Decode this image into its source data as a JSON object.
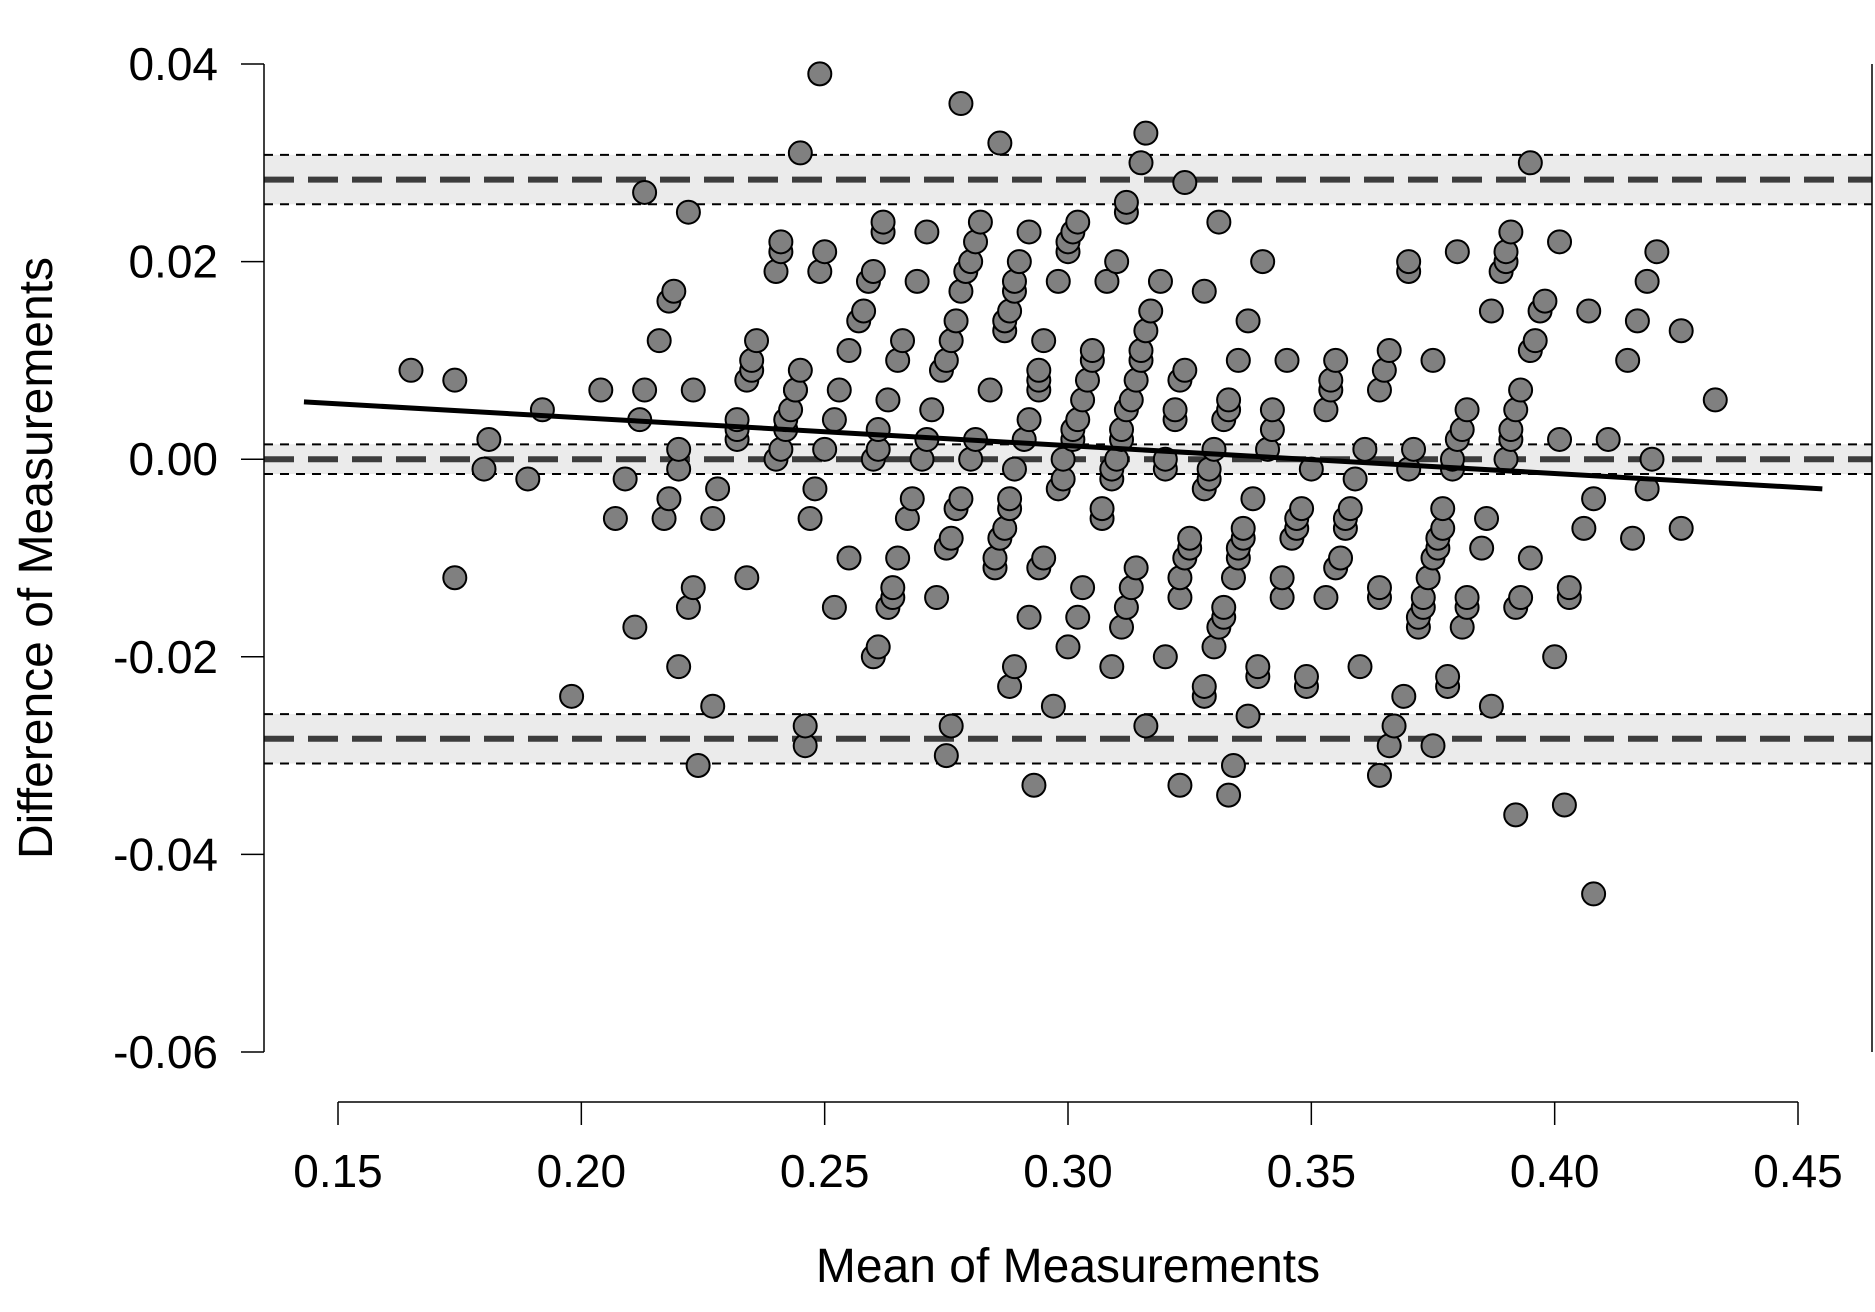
{
  "chart_data": {
    "type": "scatter",
    "title": "",
    "xlabel": "Mean of Measurements",
    "ylabel": "Difference of Measurements",
    "xlim": [
      0.15,
      0.45
    ],
    "ylim": [
      -0.06,
      0.04
    ],
    "x_ticks": [
      "0.15",
      "0.20",
      "0.25",
      "0.30",
      "0.35",
      "0.40",
      "0.45"
    ],
    "y_ticks": [
      "-0.06",
      "-0.04",
      "-0.02",
      "0.00",
      "0.02",
      "0.04"
    ],
    "grid": false,
    "legend": "none",
    "limits_of_agreement": [
      {
        "name": "upper",
        "value": 0.0283,
        "ci": [
          0.0258,
          0.0308
        ]
      },
      {
        "name": "mean",
        "value": 0.0,
        "ci": [
          -0.0015,
          0.0015
        ]
      },
      {
        "name": "lower",
        "value": -0.0283,
        "ci": [
          -0.0308,
          -0.0258
        ]
      }
    ],
    "regression_line": {
      "x": [
        0.143,
        0.455
      ],
      "y": [
        0.0058,
        -0.003
      ]
    },
    "colors": {
      "points": "#808080",
      "point_edge": "#000000",
      "band": "#ebebeb",
      "line": "#000000",
      "dashed": "#3c3c3c"
    },
    "points": [
      [
        0.165,
        0.009
      ],
      [
        0.174,
        0.008
      ],
      [
        0.174,
        -0.012
      ],
      [
        0.18,
        -0.001
      ],
      [
        0.181,
        0.002
      ],
      [
        0.189,
        -0.002
      ],
      [
        0.192,
        0.005
      ],
      [
        0.198,
        -0.024
      ],
      [
        0.204,
        0.007
      ],
      [
        0.207,
        -0.006
      ],
      [
        0.209,
        -0.002
      ],
      [
        0.211,
        -0.017
      ],
      [
        0.212,
        0.004
      ],
      [
        0.213,
        0.007
      ],
      [
        0.213,
        0.027
      ],
      [
        0.216,
        0.012
      ],
      [
        0.217,
        -0.006
      ],
      [
        0.218,
        -0.004
      ],
      [
        0.218,
        0.016
      ],
      [
        0.219,
        0.017
      ],
      [
        0.22,
        -0.021
      ],
      [
        0.22,
        -0.001
      ],
      [
        0.22,
        0.001
      ],
      [
        0.222,
        -0.015
      ],
      [
        0.222,
        0.025
      ],
      [
        0.223,
        -0.013
      ],
      [
        0.223,
        0.007
      ],
      [
        0.224,
        -0.031
      ],
      [
        0.227,
        -0.006
      ],
      [
        0.227,
        -0.025
      ],
      [
        0.228,
        -0.003
      ],
      [
        0.232,
        0.002
      ],
      [
        0.232,
        0.003
      ],
      [
        0.232,
        0.004
      ],
      [
        0.234,
        -0.012
      ],
      [
        0.234,
        0.008
      ],
      [
        0.235,
        0.009
      ],
      [
        0.235,
        0.01
      ],
      [
        0.236,
        0.012
      ],
      [
        0.24,
        0.019
      ],
      [
        0.24,
        0.0
      ],
      [
        0.241,
        0.001
      ],
      [
        0.241,
        0.021
      ],
      [
        0.241,
        0.022
      ],
      [
        0.242,
        0.003
      ],
      [
        0.242,
        0.004
      ],
      [
        0.243,
        0.005
      ],
      [
        0.244,
        0.007
      ],
      [
        0.244,
        0.007
      ],
      [
        0.245,
        0.009
      ],
      [
        0.245,
        0.031
      ],
      [
        0.246,
        -0.029
      ],
      [
        0.246,
        -0.027
      ],
      [
        0.247,
        -0.006
      ],
      [
        0.248,
        -0.003
      ],
      [
        0.249,
        0.019
      ],
      [
        0.249,
        0.039
      ],
      [
        0.25,
        0.021
      ],
      [
        0.25,
        0.001
      ],
      [
        0.252,
        0.004
      ],
      [
        0.252,
        -0.015
      ],
      [
        0.253,
        0.007
      ],
      [
        0.255,
        -0.01
      ],
      [
        0.255,
        0.011
      ],
      [
        0.257,
        0.014
      ],
      [
        0.258,
        0.015
      ],
      [
        0.259,
        0.018
      ],
      [
        0.26,
        0.019
      ],
      [
        0.26,
        -0.02
      ],
      [
        0.26,
        0.0
      ],
      [
        0.261,
        0.001
      ],
      [
        0.261,
        -0.019
      ],
      [
        0.261,
        0.003
      ],
      [
        0.262,
        0.023
      ],
      [
        0.262,
        0.024
      ],
      [
        0.263,
        -0.015
      ],
      [
        0.263,
        0.006
      ],
      [
        0.264,
        -0.014
      ],
      [
        0.264,
        -0.013
      ],
      [
        0.265,
        -0.01
      ],
      [
        0.265,
        0.01
      ],
      [
        0.266,
        0.012
      ],
      [
        0.267,
        -0.006
      ],
      [
        0.268,
        -0.004
      ],
      [
        0.269,
        0.018
      ],
      [
        0.27,
        0.0
      ],
      [
        0.271,
        0.002
      ],
      [
        0.271,
        0.023
      ],
      [
        0.272,
        0.005
      ],
      [
        0.273,
        -0.014
      ],
      [
        0.274,
        0.009
      ],
      [
        0.275,
        0.01
      ],
      [
        0.275,
        -0.03
      ],
      [
        0.275,
        -0.009
      ],
      [
        0.276,
        -0.008
      ],
      [
        0.276,
        0.012
      ],
      [
        0.276,
        -0.027
      ],
      [
        0.277,
        0.014
      ],
      [
        0.277,
        -0.005
      ],
      [
        0.278,
        0.036
      ],
      [
        0.278,
        -0.004
      ],
      [
        0.278,
        0.017
      ],
      [
        0.279,
        0.019
      ],
      [
        0.28,
        0.02
      ],
      [
        0.28,
        0.0
      ],
      [
        0.281,
        0.022
      ],
      [
        0.281,
        0.002
      ],
      [
        0.282,
        0.024
      ],
      [
        0.284,
        0.007
      ],
      [
        0.285,
        -0.011
      ],
      [
        0.285,
        -0.01
      ],
      [
        0.286,
        -0.008
      ],
      [
        0.286,
        0.032
      ],
      [
        0.287,
        -0.007
      ],
      [
        0.287,
        0.013
      ],
      [
        0.287,
        0.014
      ],
      [
        0.288,
        0.015
      ],
      [
        0.288,
        -0.005
      ],
      [
        0.288,
        -0.004
      ],
      [
        0.288,
        -0.023
      ],
      [
        0.289,
        0.017
      ],
      [
        0.289,
        0.018
      ],
      [
        0.289,
        -0.001
      ],
      [
        0.289,
        -0.021
      ],
      [
        0.29,
        0.02
      ],
      [
        0.291,
        0.002
      ],
      [
        0.292,
        0.023
      ],
      [
        0.292,
        0.004
      ],
      [
        0.292,
        -0.016
      ],
      [
        0.293,
        -0.033
      ],
      [
        0.294,
        0.007
      ],
      [
        0.294,
        0.008
      ],
      [
        0.294,
        0.009
      ],
      [
        0.294,
        -0.011
      ],
      [
        0.295,
        -0.01
      ],
      [
        0.295,
        0.012
      ],
      [
        0.297,
        -0.025
      ],
      [
        0.298,
        -0.003
      ],
      [
        0.298,
        0.018
      ],
      [
        0.299,
        -0.002
      ],
      [
        0.299,
        0.0
      ],
      [
        0.3,
        0.021
      ],
      [
        0.3,
        0.022
      ],
      [
        0.3,
        -0.019
      ],
      [
        0.301,
        0.023
      ],
      [
        0.301,
        0.002
      ],
      [
        0.301,
        0.003
      ],
      [
        0.302,
        0.024
      ],
      [
        0.302,
        0.004
      ],
      [
        0.302,
        -0.016
      ],
      [
        0.303,
        0.006
      ],
      [
        0.303,
        -0.013
      ],
      [
        0.304,
        0.008
      ],
      [
        0.305,
        0.01
      ],
      [
        0.305,
        0.011
      ],
      [
        0.307,
        -0.006
      ],
      [
        0.307,
        -0.005
      ],
      [
        0.308,
        0.018
      ],
      [
        0.309,
        -0.021
      ],
      [
        0.309,
        -0.002
      ],
      [
        0.309,
        -0.001
      ],
      [
        0.31,
        0.0
      ],
      [
        0.31,
        0.02
      ],
      [
        0.311,
        -0.017
      ],
      [
        0.311,
        0.002
      ],
      [
        0.311,
        0.003
      ],
      [
        0.312,
        0.005
      ],
      [
        0.312,
        0.025
      ],
      [
        0.312,
        -0.015
      ],
      [
        0.312,
        0.026
      ],
      [
        0.313,
        0.006
      ],
      [
        0.313,
        -0.013
      ],
      [
        0.314,
        0.008
      ],
      [
        0.314,
        -0.011
      ],
      [
        0.315,
        0.01
      ],
      [
        0.315,
        0.03
      ],
      [
        0.315,
        0.011
      ],
      [
        0.316,
        0.013
      ],
      [
        0.316,
        -0.027
      ],
      [
        0.316,
        0.033
      ],
      [
        0.317,
        0.015
      ],
      [
        0.319,
        0.018
      ],
      [
        0.32,
        -0.001
      ],
      [
        0.32,
        0.0
      ],
      [
        0.32,
        -0.02
      ],
      [
        0.322,
        0.004
      ],
      [
        0.322,
        0.005
      ],
      [
        0.323,
        -0.014
      ],
      [
        0.323,
        0.008
      ],
      [
        0.323,
        -0.012
      ],
      [
        0.323,
        -0.033
      ],
      [
        0.324,
        0.028
      ],
      [
        0.324,
        0.009
      ],
      [
        0.324,
        -0.01
      ],
      [
        0.325,
        -0.009
      ],
      [
        0.325,
        -0.008
      ],
      [
        0.328,
        -0.024
      ],
      [
        0.328,
        -0.023
      ],
      [
        0.328,
        -0.003
      ],
      [
        0.328,
        0.017
      ],
      [
        0.329,
        -0.002
      ],
      [
        0.329,
        -0.001
      ],
      [
        0.33,
        -0.019
      ],
      [
        0.33,
        0.001
      ],
      [
        0.331,
        -0.017
      ],
      [
        0.331,
        0.024
      ],
      [
        0.332,
        -0.016
      ],
      [
        0.332,
        0.004
      ],
      [
        0.332,
        -0.015
      ],
      [
        0.333,
        0.005
      ],
      [
        0.333,
        0.006
      ],
      [
        0.333,
        -0.034
      ],
      [
        0.334,
        -0.031
      ],
      [
        0.334,
        -0.012
      ],
      [
        0.335,
        0.01
      ],
      [
        0.335,
        -0.01
      ],
      [
        0.335,
        -0.009
      ],
      [
        0.336,
        -0.008
      ],
      [
        0.336,
        -0.007
      ],
      [
        0.337,
        0.014
      ],
      [
        0.337,
        -0.026
      ],
      [
        0.338,
        -0.004
      ],
      [
        0.339,
        -0.022
      ],
      [
        0.339,
        -0.021
      ],
      [
        0.34,
        0.02
      ],
      [
        0.341,
        0.001
      ],
      [
        0.342,
        0.003
      ],
      [
        0.342,
        0.005
      ],
      [
        0.344,
        -0.014
      ],
      [
        0.344,
        -0.012
      ],
      [
        0.345,
        0.01
      ],
      [
        0.346,
        -0.008
      ],
      [
        0.347,
        -0.007
      ],
      [
        0.347,
        -0.006
      ],
      [
        0.348,
        -0.005
      ],
      [
        0.349,
        -0.023
      ],
      [
        0.349,
        -0.022
      ],
      [
        0.35,
        -0.001
      ],
      [
        0.353,
        0.005
      ],
      [
        0.353,
        -0.014
      ],
      [
        0.354,
        0.007
      ],
      [
        0.354,
        0.008
      ],
      [
        0.355,
        -0.011
      ],
      [
        0.355,
        0.01
      ],
      [
        0.356,
        -0.01
      ],
      [
        0.357,
        -0.007
      ],
      [
        0.357,
        -0.006
      ],
      [
        0.358,
        -0.005
      ],
      [
        0.359,
        -0.002
      ],
      [
        0.36,
        -0.021
      ],
      [
        0.361,
        0.001
      ],
      [
        0.364,
        -0.032
      ],
      [
        0.364,
        -0.014
      ],
      [
        0.364,
        0.007
      ],
      [
        0.364,
        -0.013
      ],
      [
        0.365,
        0.009
      ],
      [
        0.366,
        0.011
      ],
      [
        0.366,
        -0.029
      ],
      [
        0.367,
        -0.027
      ],
      [
        0.369,
        -0.024
      ],
      [
        0.37,
        -0.001
      ],
      [
        0.37,
        0.019
      ],
      [
        0.37,
        0.02
      ],
      [
        0.371,
        0.001
      ],
      [
        0.372,
        -0.017
      ],
      [
        0.372,
        -0.016
      ],
      [
        0.373,
        -0.015
      ],
      [
        0.373,
        -0.014
      ],
      [
        0.374,
        -0.012
      ],
      [
        0.375,
        -0.01
      ],
      [
        0.375,
        0.01
      ],
      [
        0.375,
        -0.029
      ],
      [
        0.376,
        -0.009
      ],
      [
        0.376,
        -0.008
      ],
      [
        0.377,
        -0.007
      ],
      [
        0.377,
        -0.005
      ],
      [
        0.378,
        -0.023
      ],
      [
        0.378,
        -0.022
      ],
      [
        0.379,
        -0.001
      ],
      [
        0.379,
        0.0
      ],
      [
        0.38,
        0.021
      ],
      [
        0.38,
        0.002
      ],
      [
        0.381,
        0.003
      ],
      [
        0.381,
        -0.017
      ],
      [
        0.382,
        -0.015
      ],
      [
        0.382,
        0.005
      ],
      [
        0.382,
        -0.014
      ],
      [
        0.385,
        -0.009
      ],
      [
        0.386,
        -0.006
      ],
      [
        0.387,
        -0.025
      ],
      [
        0.387,
        0.015
      ],
      [
        0.389,
        0.019
      ],
      [
        0.39,
        0.02
      ],
      [
        0.39,
        0.021
      ],
      [
        0.39,
        0.0
      ],
      [
        0.391,
        0.002
      ],
      [
        0.391,
        0.023
      ],
      [
        0.391,
        0.003
      ],
      [
        0.392,
        -0.036
      ],
      [
        0.392,
        -0.015
      ],
      [
        0.392,
        0.005
      ],
      [
        0.393,
        -0.014
      ],
      [
        0.393,
        0.007
      ],
      [
        0.395,
        -0.01
      ],
      [
        0.395,
        0.03
      ],
      [
        0.395,
        0.011
      ],
      [
        0.396,
        0.012
      ],
      [
        0.397,
        0.015
      ],
      [
        0.398,
        0.016
      ],
      [
        0.4,
        -0.02
      ],
      [
        0.401,
        0.002
      ],
      [
        0.401,
        0.022
      ],
      [
        0.402,
        -0.035
      ],
      [
        0.403,
        -0.014
      ],
      [
        0.403,
        -0.013
      ],
      [
        0.406,
        -0.007
      ],
      [
        0.407,
        0.015
      ],
      [
        0.408,
        -0.044
      ],
      [
        0.408,
        -0.004
      ],
      [
        0.411,
        0.002
      ],
      [
        0.415,
        0.01
      ],
      [
        0.416,
        -0.008
      ],
      [
        0.417,
        0.014
      ],
      [
        0.419,
        -0.003
      ],
      [
        0.419,
        0.018
      ],
      [
        0.42,
        0.0
      ],
      [
        0.421,
        0.021
      ],
      [
        0.426,
        0.013
      ],
      [
        0.426,
        -0.007
      ],
      [
        0.433,
        0.006
      ]
    ]
  }
}
